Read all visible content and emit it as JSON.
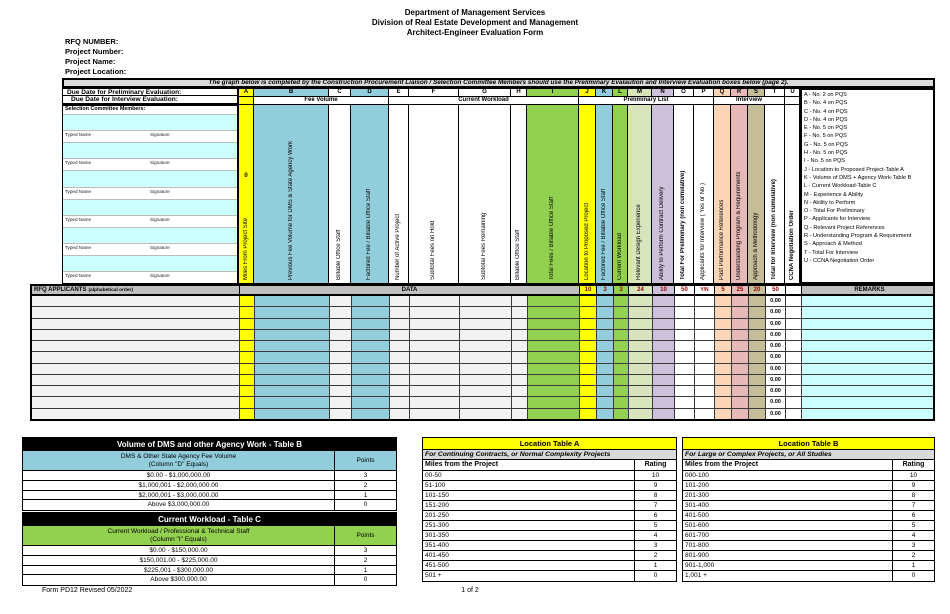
{
  "header": {
    "line1": "Department of Management Services",
    "line2": "Division of Real Estate Development and Management",
    "line3": "Architect-Engineer Evaluation Form"
  },
  "meta": {
    "rfq_number_label": "RFQ NUMBER:",
    "project_number_label": "Project Number:",
    "project_name_label": "Project Name:",
    "project_location_label": "Project Location:"
  },
  "banner": "The graph below is completed by the Construction Procurement Liaison / Selection Committee Members should use the Preliminary Evalaution and Interview Evaluation boxes below (page 2).",
  "due_dates": {
    "preliminary_label": "Due Date for Preliminary Evaluation:",
    "interview_label": "Due Date for Interview Evaluation:"
  },
  "committee": {
    "label": "Selection Committee Members:",
    "typed_name_label": "Typed Name",
    "signature_label": "Signature",
    "count": 6
  },
  "grid": {
    "columns": [
      {
        "letter": "A",
        "label": "Miles From Project Site",
        "value": "0",
        "header_color": "#FFFF00",
        "row_color": "#FFFF00",
        "max": ""
      },
      {
        "letter": "B",
        "label": "Previous Fee Volume for DMS & State Agency Work",
        "header_color": "#92CDDC",
        "row_color": "#92CDDC",
        "max": ""
      },
      {
        "letter": "C",
        "label": "Billable Office Staff",
        "header_color": "#FFFFFF",
        "row_color": "#F2F2F2",
        "max": ""
      },
      {
        "letter": "D",
        "label": "Factored Fee / Billable Office Staff",
        "header_color": "#92CDDC",
        "row_color": "#92CDDC",
        "max": ""
      },
      {
        "letter": "E",
        "label": "Number of Active Project",
        "header_color": "#FFFFFF",
        "row_color": "#F2F2F2",
        "max": ""
      },
      {
        "letter": "F",
        "label": "Subtotal Fees on Hold",
        "header_color": "#FFFFFF",
        "row_color": "#F2F2F2",
        "max": ""
      },
      {
        "letter": "G",
        "label": "Subtotal Fees Remaining",
        "header_color": "#FFFFFF",
        "row_color": "#F2F2F2",
        "max": ""
      },
      {
        "letter": "H",
        "label": "Billable Office Staff",
        "header_color": "#FFFFFF",
        "row_color": "#F2F2F2",
        "max": ""
      },
      {
        "letter": "I",
        "label": "Total Fees / Billable Office Staff",
        "header_color": "#92D050",
        "row_color": "#92D050",
        "max": ""
      },
      {
        "letter": "J",
        "label": "Location to Proposed Project",
        "header_color": "#FFFF00",
        "row_color": "#FFFF00",
        "max": "10"
      },
      {
        "letter": "K",
        "label": "Factored Fee / Billable Office Staff",
        "header_color": "#92CDDC",
        "row_color": "#92CDDC",
        "max": "3"
      },
      {
        "letter": "L",
        "label": "Current Workload",
        "header_color": "#92D050",
        "row_color": "#92D050",
        "max": "3"
      },
      {
        "letter": "M",
        "label": "Relevant Design Experience",
        "header_color": "#D7E4BC",
        "row_color": "#D7E4BC",
        "max": "24"
      },
      {
        "letter": "N",
        "label": "Ability to Perform Contract Delivery",
        "header_color": "#CCC0DA",
        "row_color": "#CCC0DA",
        "max": "10"
      },
      {
        "letter": "O",
        "label": "Total For Preliminary (non cumulative)",
        "bold": true,
        "header_color": "#FFFFFF",
        "row_color": "#FFFFFF",
        "max": "50"
      },
      {
        "letter": "P",
        "label": "Applicants for Interview ( Yes or No )",
        "header_color": "#FFFFFF",
        "row_color": "#FFFFFF",
        "max": "Y/N"
      },
      {
        "letter": "Q",
        "label": "Past Performance References",
        "header_color": "#FBD5B5",
        "row_color": "#FBD5B5",
        "max": "5"
      },
      {
        "letter": "R",
        "label": "Understanding Program & Requirements",
        "header_color": "#E6B9B8",
        "row_color": "#E6B9B8",
        "max": "25"
      },
      {
        "letter": "S",
        "label": "Approach & Methodology",
        "header_color": "#C4BD97",
        "row_color": "#C4BD97",
        "max": "20"
      },
      {
        "letter": "T",
        "label": "Total for Interview (non cumulative)",
        "bold": true,
        "header_color": "#FFFFFF",
        "row_color": "#FFFFFF",
        "max": "50"
      },
      {
        "letter": "U",
        "label": "CCNA Negotiation Order",
        "bold": true,
        "header_color": "#FFFFFF",
        "row_color": "#FFFFFF",
        "max": ""
      }
    ],
    "groups": [
      {
        "label": "Fee Volume",
        "from": "B",
        "to": "D"
      },
      {
        "label": "Current Workload",
        "from": "E",
        "to": "I"
      },
      {
        "label": "Preliminary List",
        "from": "J",
        "to": "P"
      },
      {
        "label": "Interview",
        "from": "Q",
        "to": "T"
      }
    ],
    "applicants_header": "RFQ APPLICANTS",
    "applicants_sub": "(alphabetical order)",
    "data_label": "DATA",
    "remarks_label": "REMARKS",
    "row_total_value": "0.00",
    "num_rows": 11
  },
  "legend": [
    "A - No. 2 on PQS",
    "B - No. 4 on PQS",
    "C - No. 4 on PQS",
    "D - No. 4 on PQS",
    "E - No. 5 on PQS",
    "F - No. 5 on PQS",
    "G - No. 5 on PQS",
    "H - No. 5 on PQS",
    "I - No. 5 on PQS",
    "J - Location to Proposed Project-Table A",
    "K - Volume of DMS + Agency Work-Table B",
    "L - Current Workload-Table C",
    "M - Experience & Ability",
    "N - Ability to Perform",
    "O - Total For Preliminary",
    "P - Applicants for Interview",
    "Q - Relevant Project References",
    "R - Understanding Program & Requirement",
    "S - Approach & Method",
    "T - Total For Interview",
    "U - CCNA Negotiation Order"
  ],
  "tables": {
    "volume": {
      "title": "Volume of DMS and other Agency Work - Table B",
      "col_line1": "DMS & Other State Agency Fee Volume",
      "col_line2": "(Column \"D\" Equals)",
      "points_label": "Points",
      "rows": [
        [
          "$0.00 - $1,000,000.00",
          "3"
        ],
        [
          "$1,000,001 - $2,000,000.00",
          "2"
        ],
        [
          "$2,000,001 - $3,000,000.00",
          "1"
        ],
        [
          "Above $3,000,000.00",
          "0"
        ]
      ]
    },
    "workload": {
      "title": "Current Workload - Table C",
      "col_line1": "Current Workload / Professional & Technical Staff",
      "col_line2": "(Column \"I\" Equals)",
      "points_label": "Points",
      "rows": [
        [
          "$0.00 - $150,000.00",
          "3"
        ],
        [
          "$150,001.00 - $225,000.00",
          "2"
        ],
        [
          "$225,001 - $300,000.00",
          "1"
        ],
        [
          "Above $300,000.00",
          "0"
        ]
      ]
    },
    "location_a": {
      "title": "Location Table A",
      "subtitle": "For Continuing Contracts, or Normal Complexity Projects",
      "miles_label": "Miles from the Project",
      "rating_label": "Rating",
      "rows": [
        [
          "00-50",
          "10"
        ],
        [
          "51-100",
          "9"
        ],
        [
          "101-150",
          "8"
        ],
        [
          "151-200",
          "7"
        ],
        [
          "201-250",
          "6"
        ],
        [
          "251-300",
          "5"
        ],
        [
          "301-350",
          "4"
        ],
        [
          "351-400",
          "3"
        ],
        [
          "401-450",
          "2"
        ],
        [
          "451-500",
          "1"
        ],
        [
          "501 +",
          "0"
        ]
      ]
    },
    "location_b": {
      "title": "Location Table B",
      "subtitle": "For Large or Complex Projects, or All Studies",
      "miles_label": "Miles from the Project",
      "rating_label": "Rating",
      "rows": [
        [
          "000-100",
          "10"
        ],
        [
          "101-200",
          "9"
        ],
        [
          "201-300",
          "8"
        ],
        [
          "301-400",
          "7"
        ],
        [
          "401-500",
          "6"
        ],
        [
          "501-600",
          "5"
        ],
        [
          "601-700",
          "4"
        ],
        [
          "701-800",
          "3"
        ],
        [
          "801-900",
          "2"
        ],
        [
          "901-1,000",
          "1"
        ],
        [
          "1,001 +",
          "0"
        ]
      ]
    }
  },
  "palette": {
    "highlight_yellow": "#FFFF00",
    "fee_blue": "#92CDDC",
    "workload_green": "#92D050",
    "experience_light_green": "#D7E4BC",
    "ability_purple": "#CCC0DA",
    "references_peach": "#FBD5B5",
    "program_pink": "#E6B9B8",
    "approach_tan": "#C4BD97",
    "input_cyan": "#CCFFFF",
    "header_gray": "#BFBFBF",
    "row_gray": "#F2F2F2",
    "max_value_red": "#990000"
  },
  "footer": {
    "form_label": "Form PD12 Revised 05/2022",
    "page_label": "1 of 2"
  }
}
